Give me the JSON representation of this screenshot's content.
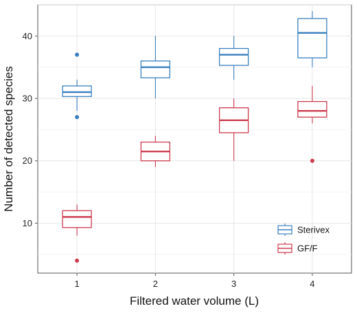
{
  "chart_data": {
    "type": "box",
    "title": "",
    "xlabel": "Filtered water volume (L)",
    "ylabel": "Number of detected species",
    "categories": [
      "1",
      "2",
      "3",
      "4"
    ],
    "ylim": [
      2,
      45
    ],
    "yticks": [
      10,
      20,
      30,
      40
    ],
    "grid": true,
    "legend_position": "bottom-right",
    "series": [
      {
        "name": "Sterivex",
        "color": "#3a7fbf",
        "boxes": [
          {
            "category": "1",
            "whisker_low": 28,
            "q1": 30.3,
            "median": 31,
            "q3": 32,
            "whisker_high": 33,
            "outliers": [
              27,
              37
            ]
          },
          {
            "category": "2",
            "whisker_low": 30,
            "q1": 33.3,
            "median": 35,
            "q3": 36,
            "whisker_high": 40,
            "outliers": []
          },
          {
            "category": "3",
            "whisker_low": 33,
            "q1": 35.3,
            "median": 37,
            "q3": 38,
            "whisker_high": 40,
            "outliers": []
          },
          {
            "category": "4",
            "whisker_low": 35,
            "q1": 36.5,
            "median": 40.5,
            "q3": 42.8,
            "whisker_high": 44,
            "outliers": []
          }
        ]
      },
      {
        "name": "GF/F",
        "color": "#cc3b4e",
        "boxes": [
          {
            "category": "1",
            "whisker_low": 8,
            "q1": 9.3,
            "median": 11,
            "q3": 12,
            "whisker_high": 13,
            "outliers": [
              4
            ]
          },
          {
            "category": "2",
            "whisker_low": 19,
            "q1": 20,
            "median": 21.5,
            "q3": 23,
            "whisker_high": 24,
            "outliers": []
          },
          {
            "category": "3",
            "whisker_low": 20,
            "q1": 24.5,
            "median": 26.5,
            "q3": 28.5,
            "whisker_high": 30,
            "outliers": []
          },
          {
            "category": "4",
            "whisker_low": 26,
            "q1": 27,
            "median": 28,
            "q3": 29.5,
            "whisker_high": 32,
            "outliers": [
              20
            ]
          }
        ]
      }
    ]
  }
}
